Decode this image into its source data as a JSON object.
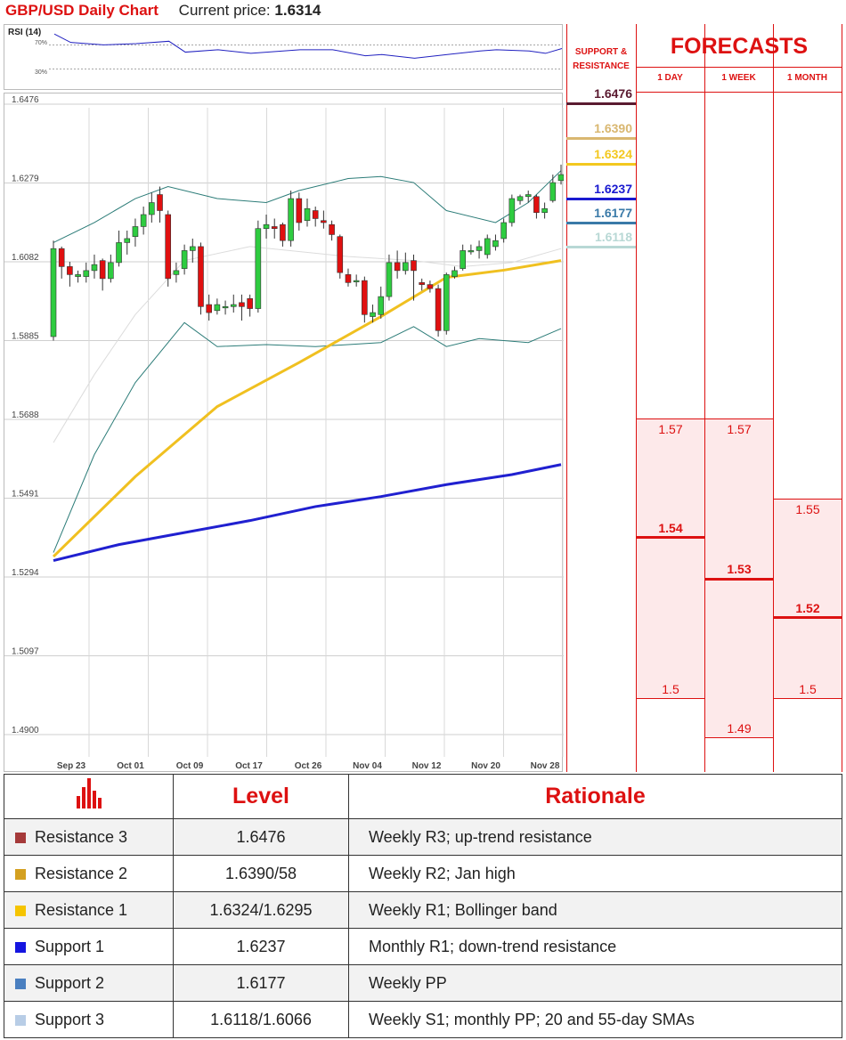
{
  "header": {
    "title": "GBP/USD Daily Chart",
    "price_label": "Current price:",
    "price_value": "1.6314"
  },
  "rsi": {
    "label": "RSI (14)",
    "tick_70": "70%",
    "tick_30": "30%"
  },
  "forecasts": {
    "support_resistance_header": "SUPPORT & RESISTANCE",
    "title": "FORECASTS",
    "col_day": "1 DAY",
    "col_week": "1 WEEK",
    "col_month": "1 MONTH",
    "sr_levels": [
      {
        "value": "1.6476",
        "color": "#5a1a30"
      },
      {
        "value": "1.6390",
        "color": "#d9b770"
      },
      {
        "value": "1.6324",
        "color": "#f3c81f"
      },
      {
        "value": "1.6237",
        "color": "#1a1ad0"
      },
      {
        "value": "1.6177",
        "color": "#3a7aa8"
      },
      {
        "value": "1.6118",
        "color": "#b8d8d5"
      }
    ],
    "day": {
      "high": "1.57",
      "mid": "1.54",
      "low": "1.5"
    },
    "week": {
      "high": "1.57",
      "mid": "1.53",
      "low": "1.49"
    },
    "month": {
      "high": "1.55",
      "mid": "1.52",
      "low": "1.5"
    }
  },
  "table": {
    "headers": {
      "level": "Level",
      "rationale": "Rationale"
    },
    "rows": [
      {
        "name": "Resistance 3",
        "level": "1.6476",
        "rationale": "Weekly R3; up-trend resistance",
        "color": "#a53a3a"
      },
      {
        "name": "Resistance 2",
        "level": "1.6390/58",
        "rationale": "Weekly R2; Jan high",
        "color": "#d4a020"
      },
      {
        "name": "Resistance 1",
        "level": "1.6324/1.6295",
        "rationale": "Weekly R1; Bollinger band",
        "color": "#f5c400"
      },
      {
        "name": "Support 1",
        "level": "1.6237",
        "rationale": "Monthly R1; down-trend resistance",
        "color": "#1515e0"
      },
      {
        "name": "Support 2",
        "level": "1.6177",
        "rationale": "Weekly PP",
        "color": "#4a7fc0"
      },
      {
        "name": "Support 3",
        "level": "1.6118/1.6066",
        "rationale": "Weekly S1; monthly PP; 20 and 55-day SMAs",
        "color": "#b8cde6"
      }
    ]
  },
  "chart_data": {
    "type": "candlestick",
    "y_ticks": [
      "1.6476",
      "1.6279",
      "1.6082",
      "1.5885",
      "1.5688",
      "1.5491",
      "1.5294",
      "1.5097",
      "1.4900"
    ],
    "ylim": [
      1.49,
      1.6476
    ],
    "x_ticks": [
      "Sep 23",
      "Oct 01",
      "Oct 09",
      "Oct 17",
      "Oct 26",
      "Nov 04",
      "Nov 12",
      "Nov 20",
      "Nov 28"
    ],
    "grid": true,
    "candles": [
      [
        1.5895,
        1.6115,
        1.6135,
        1.5885
      ],
      [
        1.6115,
        1.607,
        1.612,
        1.604
      ],
      [
        1.607,
        1.605,
        1.6082,
        1.602
      ],
      [
        1.6045,
        1.605,
        1.606,
        1.603
      ],
      [
        1.6045,
        1.606,
        1.608,
        1.603
      ],
      [
        1.606,
        1.6075,
        1.61,
        1.604
      ],
      [
        1.6085,
        1.604,
        1.609,
        1.601
      ],
      [
        1.604,
        1.608,
        1.61,
        1.603
      ],
      [
        1.608,
        1.613,
        1.616,
        1.607
      ],
      [
        1.613,
        1.614,
        1.616,
        1.61
      ],
      [
        1.6145,
        1.617,
        1.619,
        1.612
      ],
      [
        1.617,
        1.62,
        1.622,
        1.615
      ],
      [
        1.62,
        1.623,
        1.6255,
        1.618
      ],
      [
        1.625,
        1.621,
        1.627,
        1.618
      ],
      [
        1.62,
        1.604,
        1.621,
        1.602
      ],
      [
        1.605,
        1.606,
        1.608,
        1.603
      ],
      [
        1.6065,
        1.611,
        1.6125,
        1.605
      ],
      [
        1.611,
        1.612,
        1.614,
        1.608
      ],
      [
        1.612,
        1.597,
        1.613,
        1.595
      ],
      [
        1.5975,
        1.5955,
        1.6,
        1.5935
      ],
      [
        1.596,
        1.5975,
        1.599,
        1.595
      ],
      [
        1.597,
        1.597,
        1.5985,
        1.595
      ],
      [
        1.597,
        1.5975,
        1.6,
        1.5955
      ],
      [
        1.598,
        1.597,
        1.6,
        1.5935
      ],
      [
        1.599,
        1.5965,
        1.6,
        1.5945
      ],
      [
        1.5965,
        1.6165,
        1.6185,
        1.5955
      ],
      [
        1.6165,
        1.6175,
        1.62,
        1.614
      ],
      [
        1.617,
        1.6165,
        1.619,
        1.614
      ],
      [
        1.6175,
        1.6135,
        1.618,
        1.612
      ],
      [
        1.6135,
        1.624,
        1.626,
        1.612
      ],
      [
        1.624,
        1.618,
        1.6255,
        1.616
      ],
      [
        1.6185,
        1.6215,
        1.624,
        1.617
      ],
      [
        1.621,
        1.619,
        1.622,
        1.617
      ],
      [
        1.6185,
        1.618,
        1.621,
        1.6165
      ],
      [
        1.6175,
        1.615,
        1.6185,
        1.6135
      ],
      [
        1.6145,
        1.6055,
        1.615,
        1.604
      ],
      [
        1.605,
        1.603,
        1.6065,
        1.602
      ],
      [
        1.6035,
        1.6035,
        1.605,
        1.602
      ],
      [
        1.6035,
        1.595,
        1.6045,
        1.593
      ],
      [
        1.5945,
        1.5955,
        1.5975,
        1.593
      ],
      [
        1.595,
        1.5995,
        1.602,
        1.594
      ],
      [
        1.5995,
        1.608,
        1.61,
        1.5985
      ],
      [
        1.608,
        1.606,
        1.611,
        1.604
      ],
      [
        1.606,
        1.608,
        1.6105,
        1.605
      ],
      [
        1.6085,
        1.606,
        1.61,
        1.5985
      ],
      [
        1.603,
        1.6025,
        1.604,
        1.601
      ],
      [
        1.6025,
        1.6015,
        1.6035,
        1.6005
      ],
      [
        1.6015,
        1.591,
        1.6025,
        1.5895
      ],
      [
        1.591,
        1.605,
        1.6055,
        1.59
      ],
      [
        1.6045,
        1.606,
        1.607,
        1.604
      ],
      [
        1.6065,
        1.611,
        1.6125,
        1.606
      ],
      [
        1.611,
        1.611,
        1.6125,
        1.61
      ],
      [
        1.611,
        1.612,
        1.6135,
        1.609
      ],
      [
        1.61,
        1.614,
        1.615,
        1.609
      ],
      [
        1.612,
        1.6135,
        1.615,
        1.611
      ],
      [
        1.614,
        1.618,
        1.619,
        1.613
      ],
      [
        1.618,
        1.624,
        1.625,
        1.617
      ],
      [
        1.6235,
        1.6245,
        1.625,
        1.6225
      ],
      [
        1.6245,
        1.625,
        1.626,
        1.623
      ],
      [
        1.6245,
        1.6205,
        1.625,
        1.619
      ],
      [
        1.6205,
        1.6215,
        1.623,
        1.619
      ],
      [
        1.6235,
        1.628,
        1.63,
        1.623
      ],
      [
        1.6285,
        1.63,
        1.6325,
        1.6275
      ]
    ],
    "sma_yellow": [
      [
        0,
        1.5345
      ],
      [
        10,
        1.5545
      ],
      [
        20,
        1.572
      ],
      [
        30,
        1.583
      ],
      [
        40,
        1.5945
      ],
      [
        48,
        1.6043
      ],
      [
        55,
        1.6061
      ],
      [
        62,
        1.6085
      ]
    ],
    "sma_blue": [
      [
        0,
        1.5335
      ],
      [
        8,
        1.5375
      ],
      [
        16,
        1.5405
      ],
      [
        24,
        1.5435
      ],
      [
        32,
        1.547
      ],
      [
        40,
        1.5495
      ],
      [
        48,
        1.5525
      ],
      [
        56,
        1.555
      ],
      [
        62,
        1.5575
      ]
    ],
    "bb_upper": [
      [
        0,
        1.613
      ],
      [
        5,
        1.618
      ],
      [
        10,
        1.624
      ],
      [
        14,
        1.627
      ],
      [
        20,
        1.624
      ],
      [
        26,
        1.623
      ],
      [
        30,
        1.626
      ],
      [
        36,
        1.629
      ],
      [
        40,
        1.6295
      ],
      [
        44,
        1.628
      ],
      [
        48,
        1.621
      ],
      [
        54,
        1.618
      ],
      [
        58,
        1.623
      ],
      [
        62,
        1.631
      ]
    ],
    "bb_lower": [
      [
        0,
        1.5355
      ],
      [
        5,
        1.56
      ],
      [
        10,
        1.578
      ],
      [
        16,
        1.593
      ],
      [
        20,
        1.587
      ],
      [
        26,
        1.5875
      ],
      [
        32,
        1.587
      ],
      [
        40,
        1.588
      ],
      [
        44,
        1.592
      ],
      [
        48,
        1.587
      ],
      [
        52,
        1.589
      ],
      [
        58,
        1.588
      ],
      [
        62,
        1.5915
      ]
    ],
    "bb_mid": [
      [
        0,
        1.563
      ],
      [
        5,
        1.58
      ],
      [
        10,
        1.595
      ],
      [
        16,
        1.6085
      ],
      [
        24,
        1.612
      ],
      [
        36,
        1.6095
      ],
      [
        44,
        1.6085
      ],
      [
        50,
        1.607
      ],
      [
        56,
        1.608
      ],
      [
        62,
        1.6115
      ]
    ],
    "rsi": [
      [
        0,
        88
      ],
      [
        2,
        74
      ],
      [
        6,
        70
      ],
      [
        10,
        72
      ],
      [
        14,
        76
      ],
      [
        16,
        58
      ],
      [
        20,
        62
      ],
      [
        24,
        56
      ],
      [
        30,
        62
      ],
      [
        34,
        62
      ],
      [
        38,
        52
      ],
      [
        40,
        54
      ],
      [
        44,
        48
      ],
      [
        48,
        54
      ],
      [
        52,
        60
      ],
      [
        54,
        62
      ],
      [
        58,
        60
      ],
      [
        60,
        56
      ],
      [
        62,
        64
      ]
    ]
  }
}
